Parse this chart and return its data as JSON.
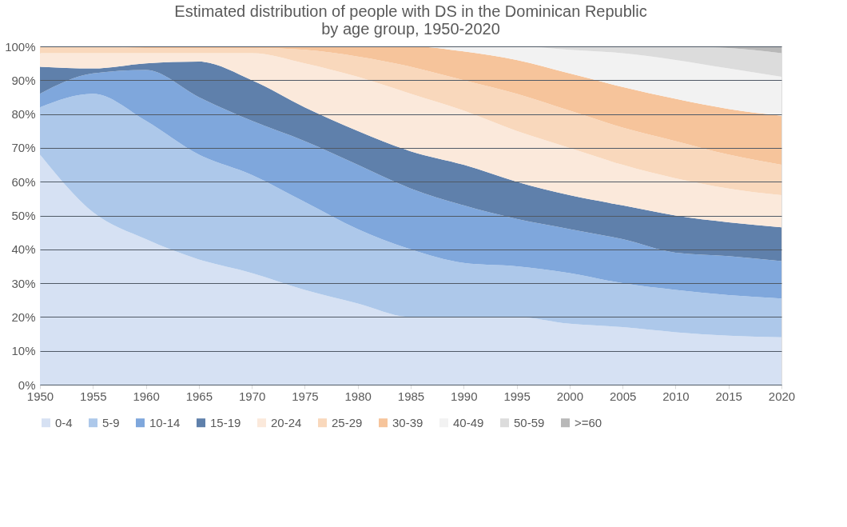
{
  "chart_data": {
    "type": "area",
    "title": "Estimated distribution of people with DS in the Dominican Republic\nby age group,  1950-2020",
    "stacked": true,
    "x": [
      1950,
      1955,
      1960,
      1965,
      1970,
      1975,
      1980,
      1985,
      1990,
      1995,
      2000,
      2005,
      2010,
      2015,
      2020
    ],
    "series": [
      {
        "name": "0-4",
        "color": "#d6e1f3",
        "values": [
          68,
          51,
          43,
          37,
          33,
          28,
          24,
          20,
          20,
          20,
          18,
          17,
          15.5,
          14.5,
          14
        ]
      },
      {
        "name": "5-9",
        "color": "#adc8ea",
        "values": [
          14,
          35,
          35,
          31,
          29,
          26,
          22,
          20,
          16,
          15,
          15,
          13,
          12.5,
          12,
          11.5
        ]
      },
      {
        "name": "10-14",
        "color": "#7fa7dc",
        "values": [
          4,
          6,
          15,
          17,
          16,
          18,
          19,
          18,
          17,
          14,
          13,
          13,
          11,
          11.5,
          11
        ]
      },
      {
        "name": "15-19",
        "color": "#5f80ab",
        "values": [
          8,
          1.5,
          2,
          10.5,
          12,
          10,
          10,
          11,
          12,
          11,
          10,
          10,
          11,
          10,
          10
        ]
      },
      {
        "name": "20-24",
        "color": "#fbe9db",
        "values": [
          4,
          4.5,
          3,
          2.5,
          8,
          13,
          16,
          17,
          16,
          15,
          14,
          12,
          11,
          10,
          9.5
        ]
      },
      {
        "name": "25-29",
        "color": "#f9d8bc",
        "values": [
          2,
          2,
          1.5,
          1.5,
          1.5,
          4,
          6,
          8,
          9,
          11,
          11,
          11,
          11,
          10,
          9
        ]
      },
      {
        "name": "30-39",
        "color": "#f6c49b",
        "values": [
          0,
          0,
          0.5,
          0.5,
          0.5,
          1,
          3,
          6,
          8.5,
          10,
          11,
          12,
          12.5,
          13.5,
          14.5
        ]
      },
      {
        "name": "40-49",
        "color": "#f2f2f2",
        "values": [
          0,
          0,
          0,
          0,
          0,
          0,
          0,
          0,
          1.5,
          4,
          7,
          10,
          11.5,
          12,
          11.5
        ]
      },
      {
        "name": "50-59",
        "color": "#dcdcdc",
        "values": [
          0,
          0,
          0,
          0,
          0,
          0,
          0,
          0,
          0,
          0,
          1,
          2,
          4,
          6,
          7
        ]
      },
      {
        "name": ">=60",
        "color": "#b8b8b8",
        "values": [
          0,
          0,
          0,
          0,
          0,
          0,
          0,
          0,
          0,
          0,
          0,
          0,
          0,
          0.5,
          2
        ]
      }
    ],
    "xlim": [
      1950,
      2020
    ],
    "xticks": [
      1950,
      1955,
      1960,
      1965,
      1970,
      1975,
      1980,
      1985,
      1990,
      1995,
      2000,
      2005,
      2010,
      2015,
      2020
    ],
    "ylim": [
      0,
      100
    ],
    "yticks": [
      {
        "value": 0,
        "label": "0%"
      },
      {
        "value": 10,
        "label": "10%"
      },
      {
        "value": 20,
        "label": "20%"
      },
      {
        "value": 30,
        "label": "30%"
      },
      {
        "value": 40,
        "label": "40%"
      },
      {
        "value": 50,
        "label": "50%"
      },
      {
        "value": 60,
        "label": "60%"
      },
      {
        "value": 70,
        "label": "70%"
      },
      {
        "value": 80,
        "label": "80%"
      },
      {
        "value": 90,
        "label": "90%"
      },
      {
        "value": 100,
        "label": "100%"
      }
    ],
    "grid": "y",
    "legend": "bottom"
  }
}
